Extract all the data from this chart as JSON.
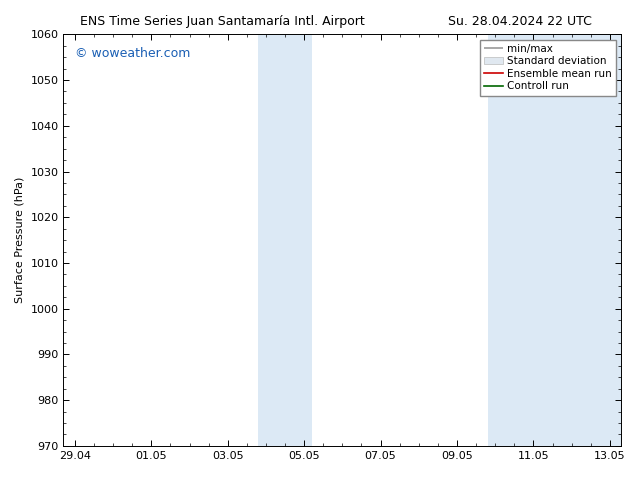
{
  "title_left": "ENS Time Series Juan Santamaría Intl. Airport",
  "title_right": "Su. 28.04.2024 22 UTC",
  "ylabel": "Surface Pressure (hPa)",
  "ylim": [
    970,
    1060
  ],
  "yticks": [
    970,
    980,
    990,
    1000,
    1010,
    1020,
    1030,
    1040,
    1050,
    1060
  ],
  "xlabels": [
    "29.04",
    "01.05",
    "03.05",
    "05.05",
    "07.05",
    "09.05",
    "11.05",
    "13.05"
  ],
  "xvalues": [
    0,
    2,
    4,
    6,
    8,
    10,
    12,
    14
  ],
  "xlim": [
    -0.3,
    14.3
  ],
  "watermark": "© woweather.com",
  "watermark_color": "#1a5fb4",
  "bg_color": "#ffffff",
  "plot_bg_color": "#ffffff",
  "shaded_bands": [
    {
      "x_start": 4.8,
      "x_end": 5.5,
      "color": "#dce9f5"
    },
    {
      "x_start": 5.5,
      "x_end": 6.2,
      "color": "#dce9f5"
    },
    {
      "x_start": 10.8,
      "x_end": 11.5,
      "color": "#dce9f5"
    },
    {
      "x_start": 11.5,
      "x_end": 12.2,
      "color": "#dce9f5"
    },
    {
      "x_start": 12.2,
      "x_end": 14.3,
      "color": "#dce9f5"
    }
  ],
  "legend_labels": [
    "min/max",
    "Standard deviation",
    "Ensemble mean run",
    "Controll run"
  ],
  "legend_colors_line": [
    "#999999",
    "#cccccc",
    "#cc0000",
    "#006600"
  ],
  "grid_color": "#cccccc",
  "spine_color": "#000000",
  "tick_color": "#000000",
  "font_size": 8,
  "title_font_size": 9,
  "watermark_font_size": 9
}
